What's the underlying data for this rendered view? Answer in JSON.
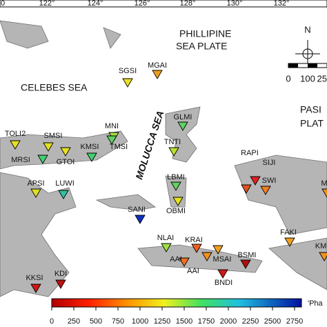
{
  "map": {
    "graticule_labels": [
      "0",
      "122°",
      "124°",
      "126°",
      "128°",
      "130°",
      "132°"
    ],
    "regions": {
      "phillipine_1": "PHILLIPINE",
      "phillipine_2": "SEA PLATE",
      "celebes": "CELEBES SEA",
      "molucca": "MOLUCCA SEA",
      "pasi_1": "PASI",
      "pasi_2": "PLAT"
    },
    "north": "N",
    "scale_bar": [
      "0",
      "100",
      "25"
    ],
    "stations": [
      {
        "name": "SGSI",
        "color": "#e8e020"
      },
      {
        "name": "MGAI",
        "color": "#f0a020"
      },
      {
        "name": "GLMI",
        "color": "#60d060"
      },
      {
        "name": "TNTI",
        "color": "#b8e030"
      },
      {
        "name": "TOLI2",
        "color": "#e8e020"
      },
      {
        "name": "SMSI",
        "color": "#e0e020"
      },
      {
        "name": "MNI",
        "color": "#a8e040"
      },
      {
        "name": "MRSI",
        "color": "#40d070"
      },
      {
        "name": "GTOI",
        "color": "#e8e020"
      },
      {
        "name": "KMSI",
        "color": "#40d070"
      },
      {
        "name": "TMSI",
        "color": "#60d060"
      },
      {
        "name": "RAPI",
        "color": "#e02020"
      },
      {
        "name": "SIJI",
        "color": "#f08020"
      },
      {
        "name": "SWI",
        "color": "#e05020"
      },
      {
        "name": "APSI",
        "color": "#e0e020"
      },
      {
        "name": "LUWI",
        "color": "#30c0a0"
      },
      {
        "name": "LBMI",
        "color": "#60d060"
      },
      {
        "name": "OBMI",
        "color": "#e8e020"
      },
      {
        "name": "SANI",
        "color": "#1030c0"
      },
      {
        "name": "NLAI",
        "color": "#a0e040"
      },
      {
        "name": "KRAI",
        "color": "#f06020"
      },
      {
        "name": "AAI",
        "color": "#f07020"
      },
      {
        "name": "AAI",
        "color": "#f09020"
      },
      {
        "name": "MSAI",
        "color": "#f0a020"
      },
      {
        "name": "BSMI",
        "color": "#b01010"
      },
      {
        "name": "BNDI",
        "color": "#d01818"
      },
      {
        "name": "FAKI",
        "color": "#f0a020"
      },
      {
        "name": "KKSI",
        "color": "#d01818"
      },
      {
        "name": "KDI",
        "color": "#c01010"
      },
      {
        "name": "KM",
        "color": "#f09020"
      },
      {
        "name": "M",
        "color": "#f09020"
      }
    ],
    "colorbar": {
      "label": "'Pha",
      "ticks": [
        0,
        250,
        500,
        750,
        1000,
        1250,
        1500,
        1750,
        2000,
        2250,
        2500,
        2750
      ]
    }
  }
}
